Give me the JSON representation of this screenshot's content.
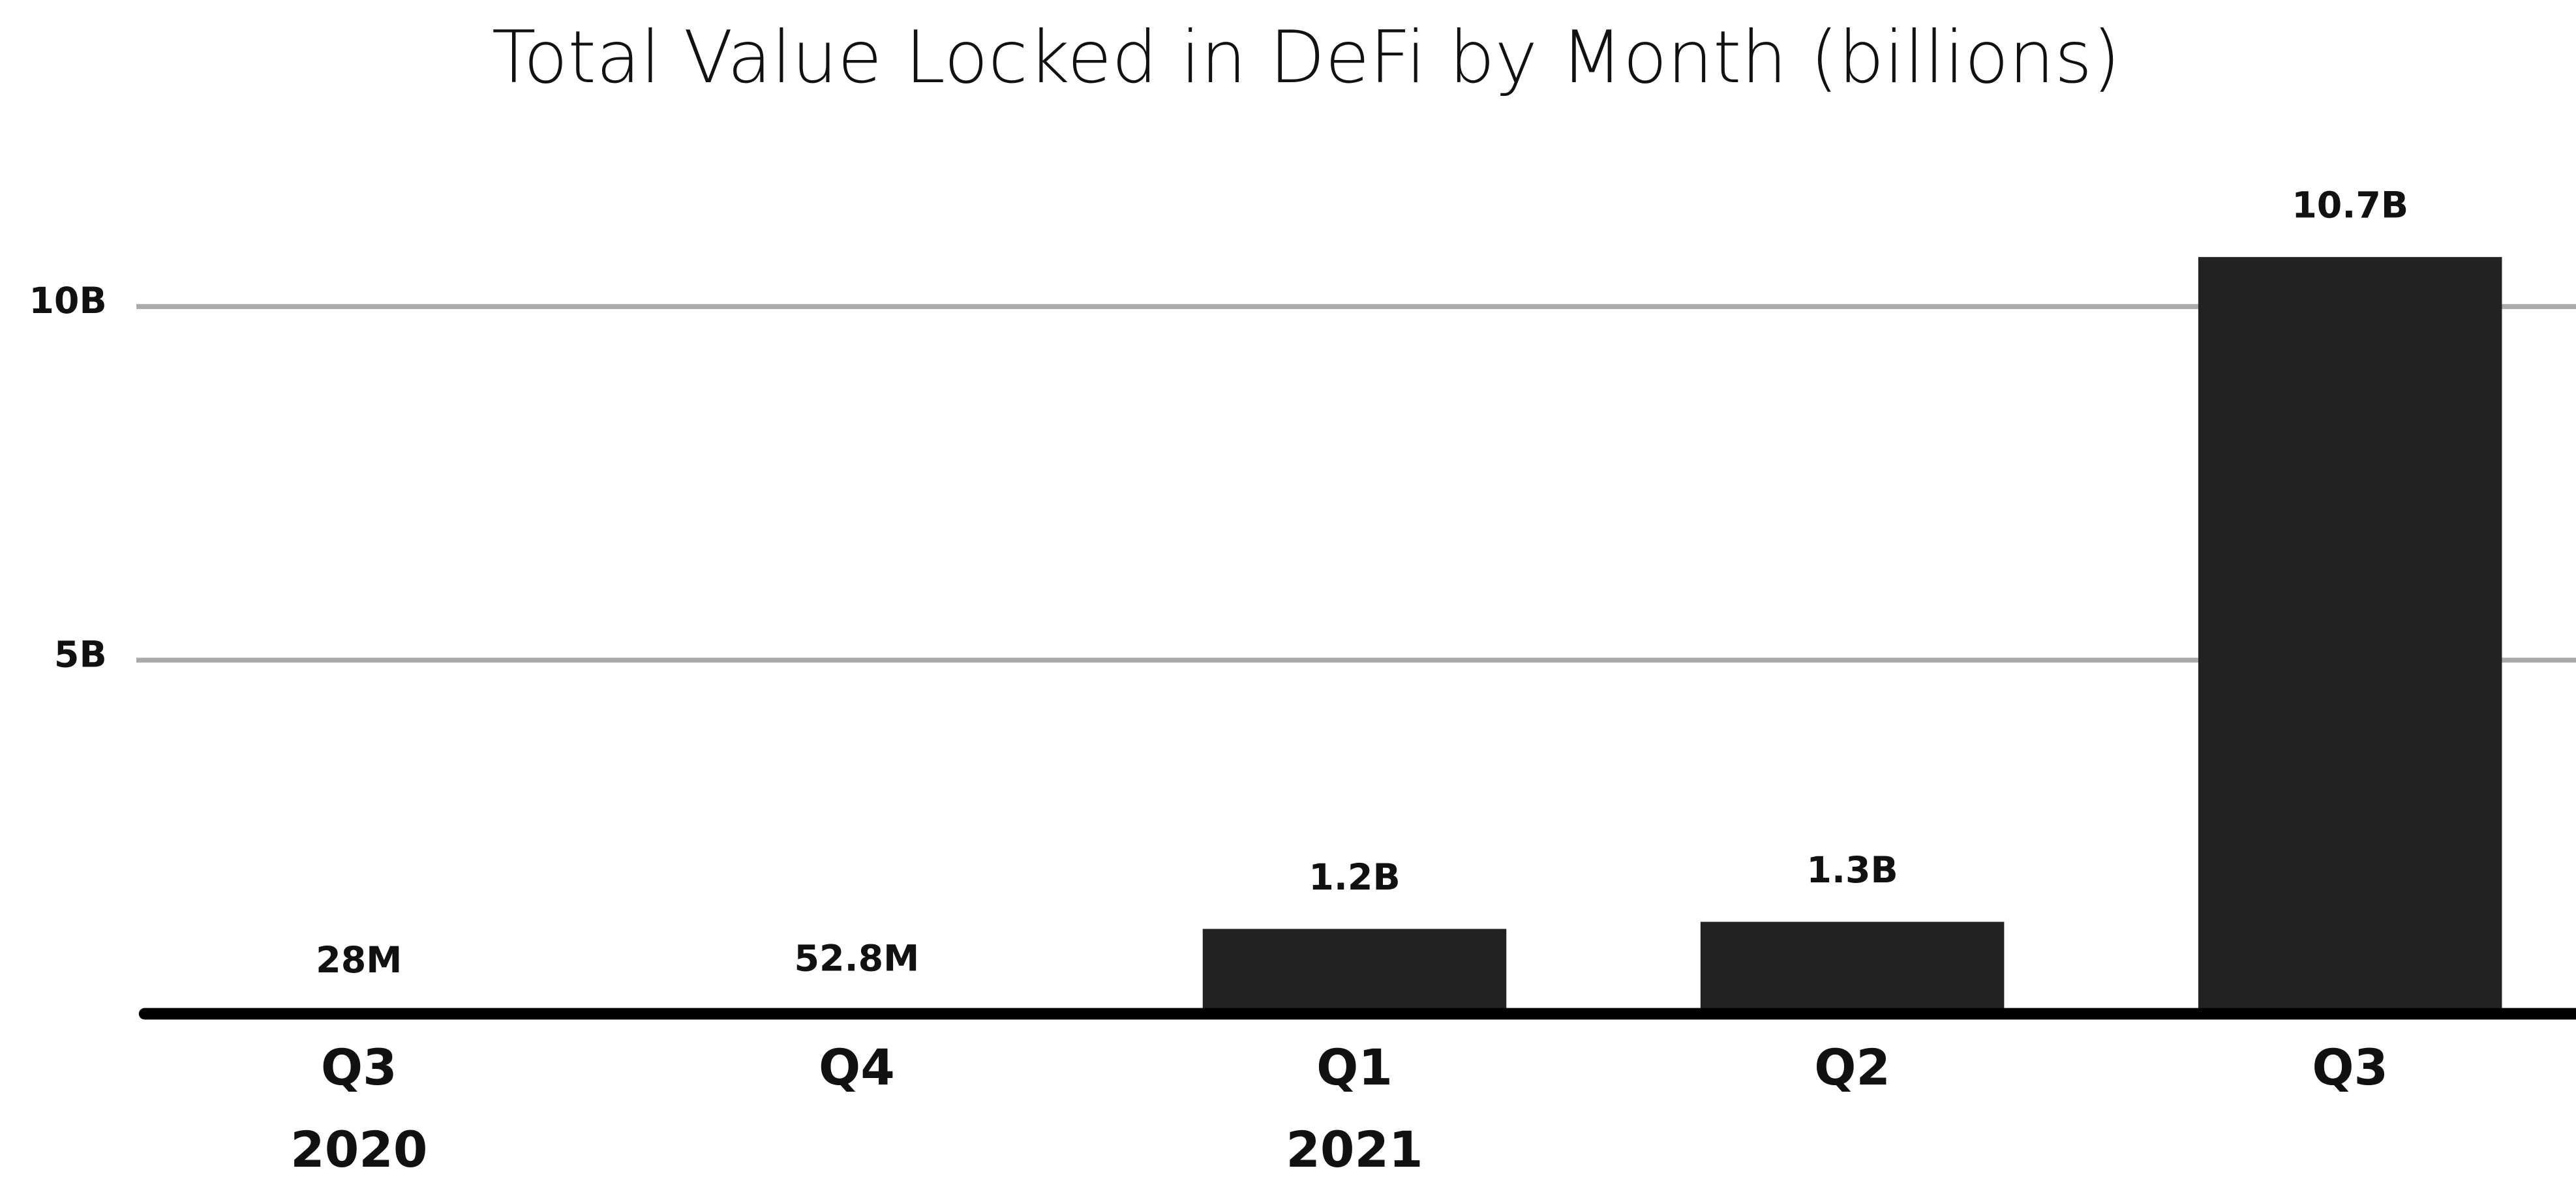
{
  "chart_data": {
    "type": "bar",
    "title": "Total Value Locked in DeFi by Month (billions)",
    "categories": [
      "Q3",
      "Q4",
      "Q1",
      "Q2",
      "Q3"
    ],
    "year_labels": [
      "2020",
      null,
      "2021",
      null,
      null
    ],
    "values": [
      0.028,
      0.0528,
      1.2,
      1.3,
      10.7
    ],
    "value_labels": [
      "28M",
      "52.8M",
      "1.2B",
      "1.3B",
      "10.7B"
    ],
    "color": "#222222",
    "ylim": [
      0,
      11.5
    ],
    "yticks": [
      {
        "value": 5,
        "label": "5B"
      },
      {
        "value": 10,
        "label": "10B"
      }
    ],
    "grid": true
  }
}
